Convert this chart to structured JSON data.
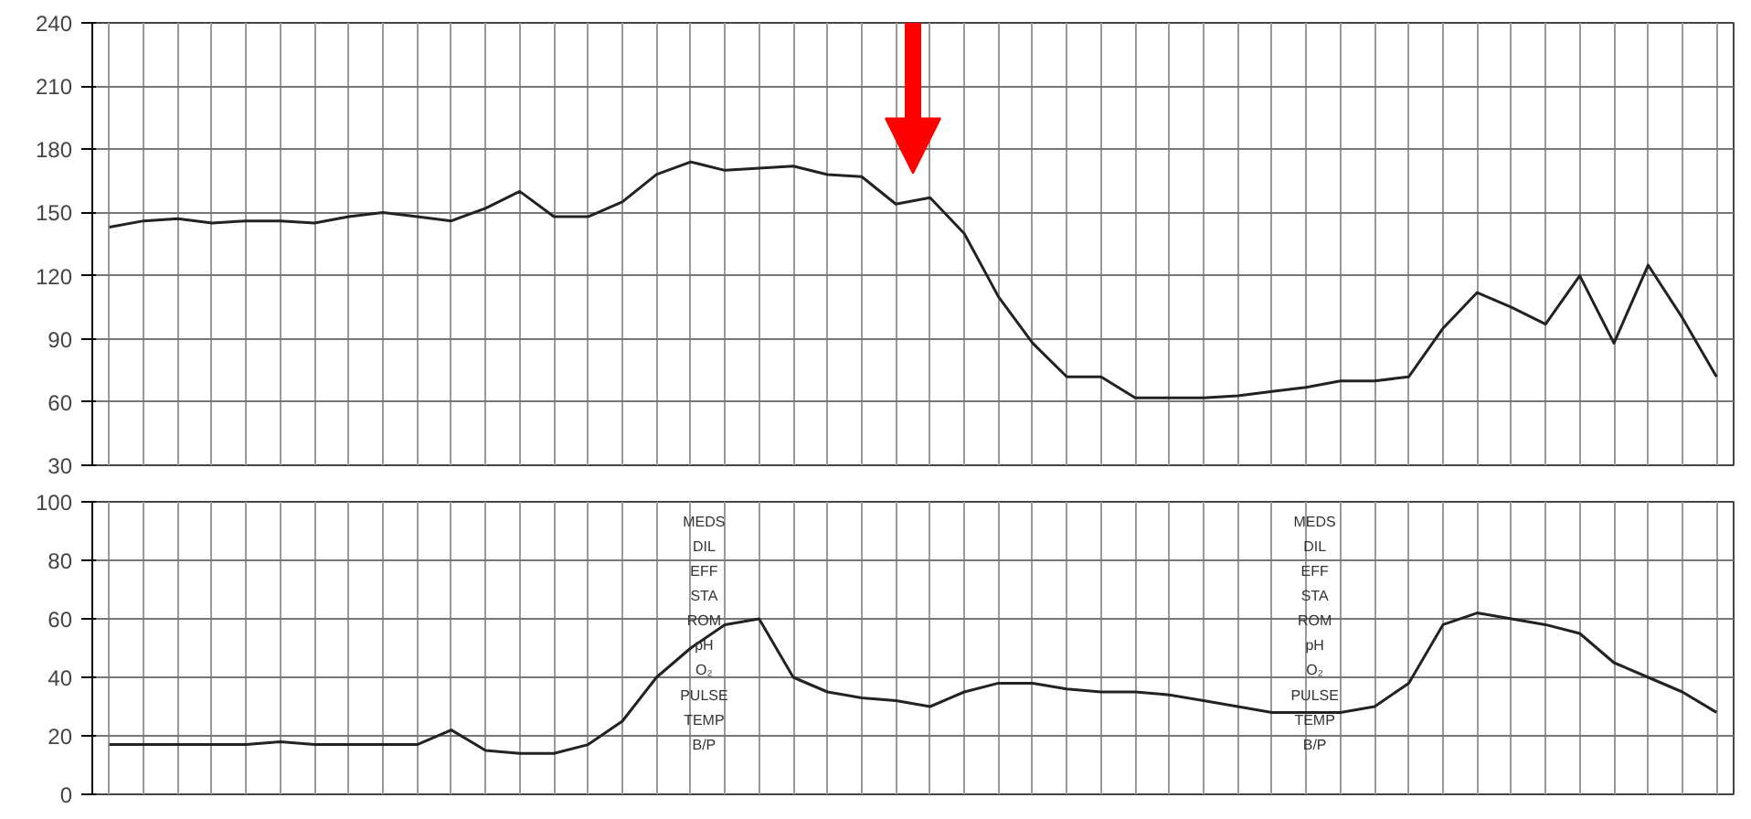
{
  "chart_data": [
    {
      "type": "line",
      "categories": [
        null,
        null,
        null,
        null,
        null,
        null,
        null,
        null,
        null,
        null,
        null,
        null,
        null,
        null,
        null,
        null,
        null,
        null,
        null,
        null,
        null,
        null,
        null,
        null,
        null,
        null,
        null,
        null,
        null,
        null,
        null,
        null,
        null,
        null,
        null,
        null,
        null,
        null,
        null,
        null,
        null,
        null,
        null,
        null,
        null,
        null,
        null,
        null
      ],
      "series": [
        {
          "color": "#222222",
          "values": [
            143,
            146,
            147,
            145,
            146,
            146,
            145,
            148,
            150,
            148,
            146,
            152,
            160,
            148,
            148,
            155,
            168,
            174,
            170,
            171,
            172,
            168,
            167,
            154,
            157,
            140,
            110,
            88,
            72,
            72,
            62,
            62,
            62,
            63,
            65,
            67,
            70,
            70,
            72,
            95,
            112,
            105,
            97,
            120,
            88,
            125,
            100,
            72
          ]
        }
      ],
      "ylim": [
        30,
        240
      ],
      "yticks": [
        30,
        60,
        90,
        120,
        150,
        180,
        210,
        240
      ],
      "grid": true,
      "tick_labels": "y"
    },
    {
      "type": "line",
      "categories": [
        null,
        null,
        null,
        null,
        null,
        null,
        null,
        null,
        null,
        null,
        null,
        null,
        null,
        null,
        null,
        null,
        null,
        null,
        null,
        null,
        null,
        null,
        null,
        null,
        null,
        null,
        null,
        null,
        null,
        null,
        null,
        null,
        null,
        null,
        null,
        null,
        null,
        null,
        null,
        null,
        null,
        null,
        null,
        null,
        null,
        null,
        null,
        null
      ],
      "series": [
        {
          "color": "#222222",
          "values": [
            17,
            17,
            17,
            17,
            17,
            18,
            17,
            17,
            17,
            17,
            22,
            15,
            14,
            14,
            17,
            25,
            40,
            50,
            58,
            60,
            40,
            35,
            33,
            32,
            30,
            35,
            38,
            38,
            36,
            35,
            35,
            34,
            32,
            30,
            28,
            28,
            28,
            30,
            38,
            58,
            62,
            60,
            58,
            55,
            45,
            40,
            35,
            28
          ]
        }
      ],
      "ylim": [
        0,
        100
      ],
      "yticks": [
        0,
        20,
        40,
        60,
        80,
        100
      ],
      "grid": true,
      "tick_labels": "y",
      "annotations": [
        "MEDS",
        "DIL",
        "EFF",
        "STA",
        "ROM",
        "pH",
        "O₂",
        "PULSE",
        "TEMP",
        "B/P"
      ]
    }
  ]
}
